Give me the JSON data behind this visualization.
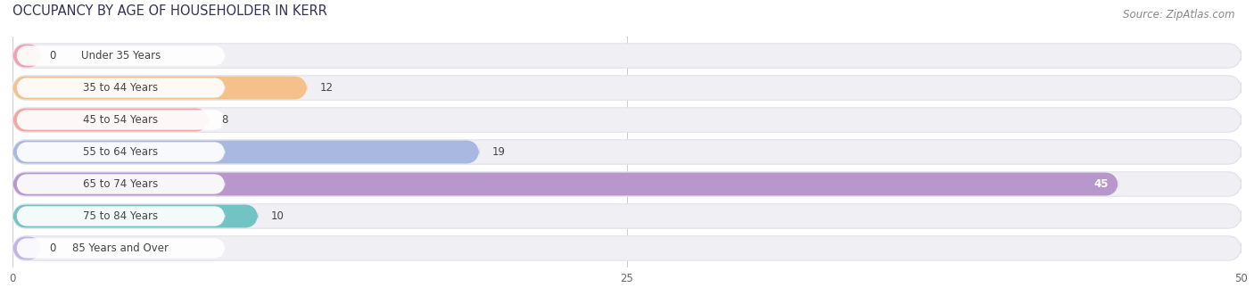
{
  "title": "OCCUPANCY BY AGE OF HOUSEHOLDER IN KERR",
  "source": "Source: ZipAtlas.com",
  "categories": [
    "Under 35 Years",
    "35 to 44 Years",
    "45 to 54 Years",
    "55 to 64 Years",
    "65 to 74 Years",
    "75 to 84 Years",
    "85 Years and Over"
  ],
  "values": [
    0,
    12,
    8,
    19,
    45,
    10,
    0
  ],
  "bar_colors": [
    "#f2a0b0",
    "#f5c18a",
    "#f4a5a0",
    "#a8b8e0",
    "#b898cc",
    "#72c4c4",
    "#c0b4e8"
  ],
  "row_bg_color": "#f0f0f4",
  "row_border_color": "#e0e0e8",
  "label_bg_color": "#ffffff",
  "xlim_max": 50,
  "xticks": [
    0,
    25,
    50
  ],
  "title_fontsize": 10.5,
  "label_fontsize": 8.5,
  "value_fontsize": 8.5,
  "source_fontsize": 8.5,
  "figsize": [
    14.06,
    3.41
  ],
  "dpi": 100
}
